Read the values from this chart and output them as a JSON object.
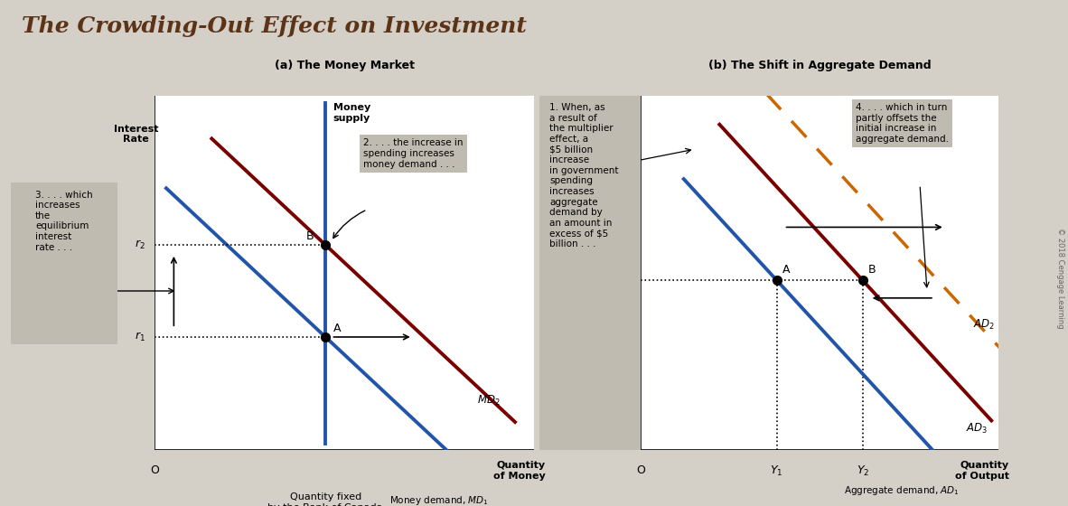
{
  "title": "The Crowding-Out Effect on Investment",
  "title_color": "#5c3317",
  "bg_color": "#d4d0c8",
  "panel_bg": "#ffffff",
  "panel_a_title": "(a) The Money Market",
  "panel_b_title": "(b) The Shift in Aggregate Demand",
  "money_supply_color": "#2255aa",
  "md1_color": "#2255aa",
  "md2_color": "#7a0000",
  "ad1_color": "#2255aa",
  "ad2_dashed_color": "#cc6600",
  "ad3_color": "#7a0000",
  "annotation_box_color": "#c0bbb0",
  "panel_a_note2": "2. . . . the increase in\nspending increases\nmoney demand . . .",
  "panel_a_note3": "3. . . . which\nincreases\nthe\nequilibrium\ninterest\nrate . . .",
  "panel_b_note1": "1. When, as\na result of\nthe multiplier\neffect, a\n$5 billion\nincrease\nin government\nspending\nincreases\naggregate\ndemand by\nan amount in\nexcess of $5\nbillion . . .",
  "panel_b_note4": "4. . . . which in turn\npartly offsets the\ninitial increase in\naggregate demand.",
  "copyright": "© 2018 Cengage Learning"
}
